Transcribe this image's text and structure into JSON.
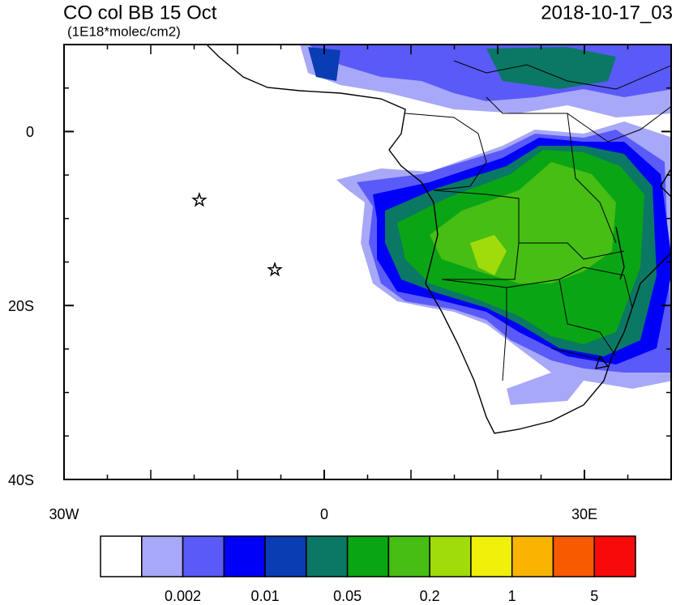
{
  "header": {
    "title": "CO col BB 15 Oct",
    "units": "(1E18*molec/cm2)",
    "time": "2018-10-17_03"
  },
  "map": {
    "xlim": [
      -30,
      40
    ],
    "ylim": [
      -40,
      10
    ],
    "xticks": [
      {
        "value": -30,
        "label": "30W"
      },
      0,
      {
        "value": 30,
        "label": "30E"
      }
    ],
    "xminor_ticks": [
      -20,
      -10,
      10,
      20,
      40
    ],
    "yticks": [
      0,
      {
        "value": -20,
        "label": "20S"
      },
      {
        "value": -40,
        "label": "40S"
      }
    ],
    "yminor_ticks": [
      5,
      -5,
      -10,
      -15,
      -25,
      -30,
      -35
    ],
    "xminor_ticks_all": [
      -25,
      -15,
      -5,
      5,
      15,
      25,
      35
    ],
    "markers": {
      "lon": [
        -14.4,
        -5.7
      ],
      "lat": [
        -7.9,
        -15.9
      ]
    }
  },
  "colorbar": {
    "colors": [
      "#ffffff",
      "#a8a8f8",
      "#5a5af8",
      "#0000f8",
      "#0a3cb4",
      "#0a7864",
      "#0aa514",
      "#46be14",
      "#a0dc0a",
      "#f0f00a",
      "#f8b400",
      "#f85a00",
      "#f80a0a"
    ],
    "levels": [
      null,
      0.002,
      null,
      0.01,
      null,
      0.05,
      null,
      0.2,
      null,
      1,
      null,
      5
    ]
  }
}
